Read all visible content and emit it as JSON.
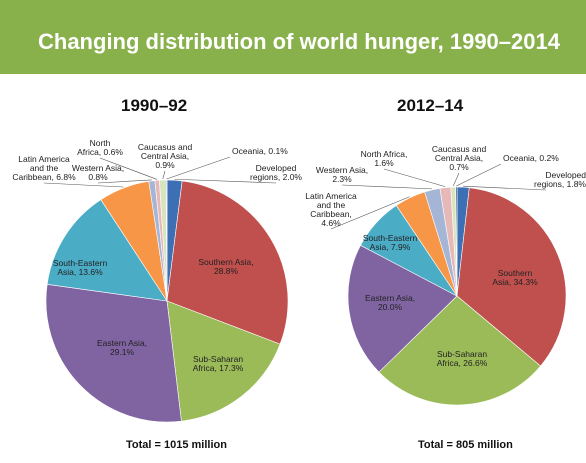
{
  "banner": {
    "title": "Changing distribution of world hunger, 1990–2014"
  },
  "colors": {
    "banner": "#88b04b"
  },
  "chart_data": [
    {
      "type": "pie",
      "title": "1990–92",
      "total_label": "Total = 1015  million",
      "start_angle_deg": 0,
      "direction": "clockwise",
      "slices": [
        {
          "name": "Developed regions",
          "label": [
            "Developed",
            "regions, 2.0%"
          ],
          "value": 2.0,
          "color": "#3c6fb4"
        },
        {
          "name": "Southern Asia",
          "label": [
            "Southern Asia,",
            "28.8%"
          ],
          "value": 28.8,
          "color": "#c0504d"
        },
        {
          "name": "Sub-Saharan Africa",
          "label": [
            "Sub-Saharan",
            "Africa, 17.3%"
          ],
          "value": 17.3,
          "color": "#9bbb59"
        },
        {
          "name": "Eastern Asia",
          "label": [
            "Eastern Asia,",
            "29.1%"
          ],
          "value": 29.1,
          "color": "#8064a2"
        },
        {
          "name": "South-Eastern Asia",
          "label": [
            "South-Eastern",
            "Asia, 13.6%"
          ],
          "value": 13.6,
          "color": "#4bacc6"
        },
        {
          "name": "Latin America and the Caribbean",
          "label": [
            "Latin America",
            "and the",
            "Caribbean, 6.8%"
          ],
          "value": 6.8,
          "color": "#f79646"
        },
        {
          "name": "Western Asia",
          "label": [
            "Western Asia,",
            "0.8%"
          ],
          "value": 0.8,
          "color": "#a5b5d6"
        },
        {
          "name": "North Africa",
          "label": [
            "North",
            "Africa, 0.6%"
          ],
          "value": 0.6,
          "color": "#e6b9b8"
        },
        {
          "name": "Caucasus and Central Asia",
          "label": [
            "Caucasus and",
            "Central Asia,",
            "0.9%"
          ],
          "value": 0.9,
          "color": "#d7e4bd"
        },
        {
          "name": "Oceania",
          "label": [
            "Oceania, 0.1%"
          ],
          "value": 0.1,
          "color": "#2c4d75"
        }
      ]
    },
    {
      "type": "pie",
      "title": "2012–14",
      "total_label": "Total = 805 million",
      "start_angle_deg": 0,
      "direction": "clockwise",
      "slices": [
        {
          "name": "Developed regions",
          "label": [
            "Developed",
            "regions, 1.8%"
          ],
          "value": 1.8,
          "color": "#3c6fb4"
        },
        {
          "name": "Southern Asia",
          "label": [
            "Southern",
            "Asia, 34.3%"
          ],
          "value": 34.3,
          "color": "#c0504d"
        },
        {
          "name": "Sub-Saharan Africa",
          "label": [
            "Sub-Saharan",
            "Africa, 26.6%"
          ],
          "value": 26.6,
          "color": "#9bbb59"
        },
        {
          "name": "Eastern Asia",
          "label": [
            "Eastern Asia,",
            "20.0%"
          ],
          "value": 20.0,
          "color": "#8064a2"
        },
        {
          "name": "South-Eastern Asia",
          "label": [
            "South-Eastern",
            "Asia, 7.9%"
          ],
          "value": 7.9,
          "color": "#4bacc6"
        },
        {
          "name": "Latin America and the Caribbean",
          "label": [
            "Latin America",
            "and the",
            "Caribbean,",
            "4.6%"
          ],
          "value": 4.6,
          "color": "#f79646"
        },
        {
          "name": "Western Asia",
          "label": [
            "Western Asia,",
            "2.3%"
          ],
          "value": 2.3,
          "color": "#a5b5d6"
        },
        {
          "name": "North Africa",
          "label": [
            "North Africa,",
            "1.6%"
          ],
          "value": 1.6,
          "color": "#e6b9b8"
        },
        {
          "name": "Caucasus and Central Asia",
          "label": [
            "Caucasus and",
            "Central Asia,",
            "0.7%"
          ],
          "value": 0.7,
          "color": "#d7e4bd"
        },
        {
          "name": "Oceania",
          "label": [
            "Oceania, 0.2%"
          ],
          "value": 0.2,
          "color": "#2c4d75"
        }
      ]
    }
  ]
}
